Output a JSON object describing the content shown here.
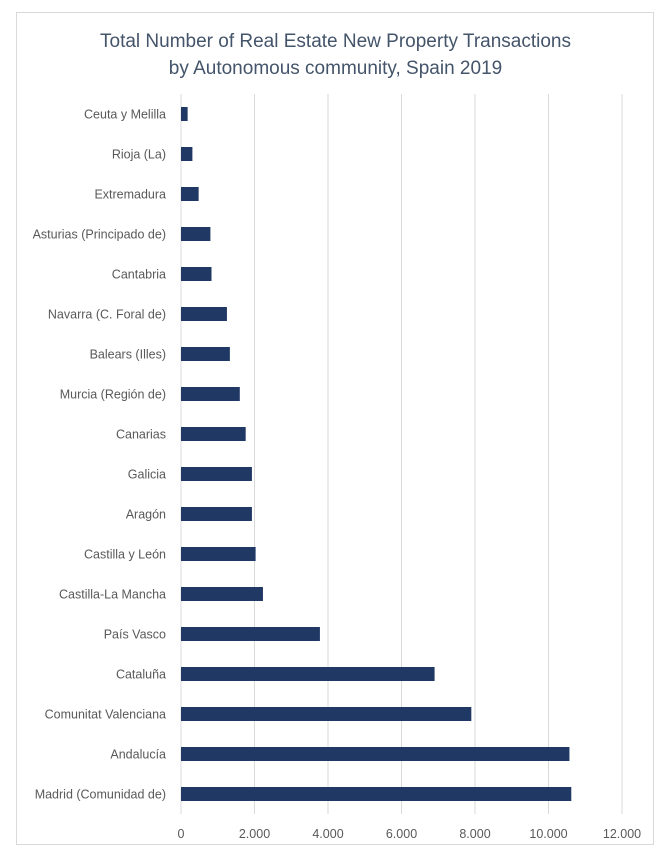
{
  "chart_data": {
    "type": "bar",
    "orientation": "horizontal",
    "title_line1": "Total Number of Real Estate New Property Transactions",
    "title_line2": "by Autonomous community, Spain  2019",
    "categories": [
      "Ceuta y Melilla",
      "Rioja (La)",
      "Extremadura",
      "Asturias (Principado de)",
      "Cantabria",
      "Navarra (C. Foral de)",
      "Balears (Illes)",
      "Murcia (Región de)",
      "Canarias",
      "Galicia",
      "Aragón",
      "Castilla y León",
      "Castilla-La Mancha",
      "País Vasco",
      "Cataluña",
      "Comunitat Valenciana",
      "Andalucía",
      "Madrid (Comunidad de)"
    ],
    "values": [
      180,
      310,
      480,
      800,
      830,
      1250,
      1330,
      1600,
      1760,
      1930,
      1930,
      2030,
      2230,
      3780,
      6900,
      7900,
      10570,
      10620
    ],
    "xlim": [
      0,
      12000
    ],
    "xticks": [
      0,
      2000,
      4000,
      6000,
      8000,
      10000,
      12000
    ],
    "xtick_labels": [
      "0",
      "2.000",
      "4.000",
      "6.000",
      "8.000",
      "10.000",
      "12.000"
    ],
    "grid": true,
    "bar_color": "#203864",
    "grid_color": "#d9d9d9",
    "title_color": "#44546a"
  }
}
